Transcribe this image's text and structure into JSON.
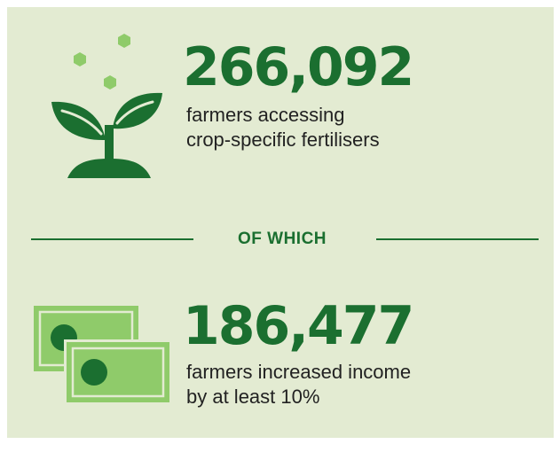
{
  "stat_1": {
    "number": "266,092",
    "description_line_1": "farmers accessing",
    "description_line_2": "crop-specific fertilisers",
    "icon": "seedling-icon"
  },
  "divider": {
    "label": "OF WHICH"
  },
  "stat_2": {
    "number": "186,477",
    "description_line_1": "farmers increased income",
    "description_line_2": "by at least 10%",
    "icon": "banknotes-icon"
  },
  "colors": {
    "background": "#e3ebd2",
    "dark_green": "#1b6f30",
    "light_green": "#8fcb6a",
    "text": "#222222"
  }
}
